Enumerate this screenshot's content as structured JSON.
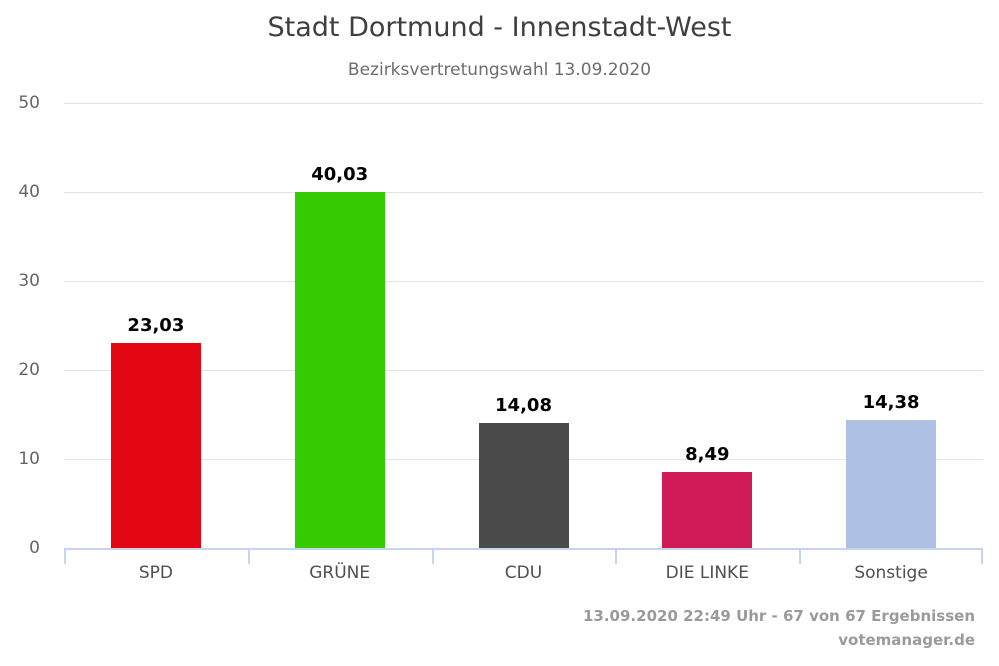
{
  "header": {
    "title": "Stadt Dortmund - Innenstadt-West",
    "subtitle": "Bezirksvertretungswahl 13.09.2020"
  },
  "footer": {
    "status_line": "13.09.2020 22:49 Uhr - 67 von 67 Ergebnissen",
    "source_link": "votemanager.de"
  },
  "colors": {
    "background": "#ffffff",
    "title_text": "#3f3f3f",
    "subtitle_text": "#6d6d6d",
    "tick_label": "#666666",
    "category_label": "#4f4f4f",
    "value_label": "#000000",
    "gridline": "#e4e4e4",
    "axis_line": "#c7d4ee",
    "footer_text": "#9a9a9a"
  },
  "chart_data": {
    "type": "bar",
    "title": "Stadt Dortmund - Innenstadt-West",
    "subtitle": "Bezirksvertretungswahl 13.09.2020",
    "categories": [
      "SPD",
      "GRÜNE",
      "CDU",
      "DIE LINKE",
      "Sonstige"
    ],
    "values": [
      23.03,
      40.03,
      14.08,
      8.49,
      14.38
    ],
    "value_labels": [
      "23,03",
      "40,03",
      "14,08",
      "8,49",
      "14,38"
    ],
    "bar_colors": [
      "#e30613",
      "#35cb02",
      "#4b4b4b",
      "#d01b58",
      "#afc0e5"
    ],
    "xlabel": "",
    "ylabel": "",
    "ylim": [
      0,
      50
    ],
    "yticks": [
      0,
      10,
      20,
      30,
      40,
      50
    ],
    "grid": true,
    "legend": false
  }
}
